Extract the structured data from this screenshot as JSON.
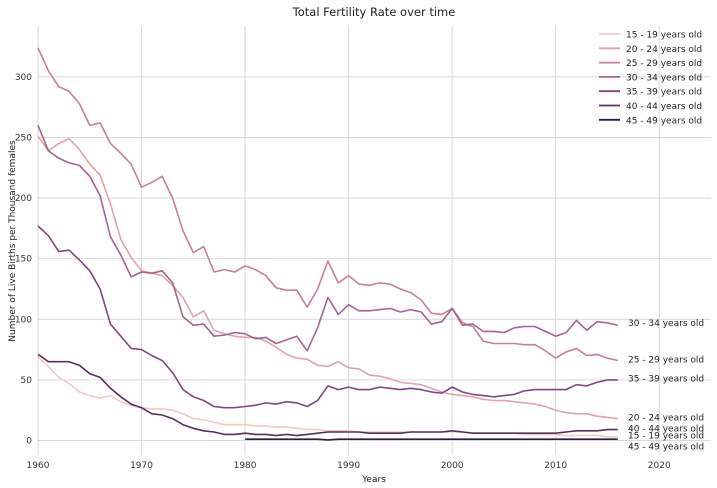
{
  "chart_data": {
    "type": "line",
    "title": "Total Fertility Rate over time",
    "xlabel": "Years",
    "ylabel": "Number of Live Births per Thousand females",
    "xlim": [
      1960,
      2025
    ],
    "ylim": [
      -12,
      342
    ],
    "xticks": [
      1960,
      1970,
      1980,
      1990,
      2000,
      2010,
      2020
    ],
    "yticks": [
      0,
      50,
      100,
      150,
      200,
      250,
      300
    ],
    "grid": true,
    "legend_position": "top-right",
    "series": [
      {
        "name": "15 - 19 years old",
        "color": "#efcbc4",
        "end_label": "15 - 19 years old",
        "x": [
          1960,
          1961,
          1962,
          1963,
          1964,
          1965,
          1966,
          1967,
          1968,
          1969,
          1970,
          1971,
          1972,
          1973,
          1974,
          1975,
          1976,
          1977,
          1978,
          1979,
          1980,
          1981,
          1982,
          1983,
          1984,
          1985,
          1986,
          1987,
          1988,
          1989,
          1990,
          1991,
          1992,
          1993,
          1994,
          1995,
          1996,
          1997,
          1998,
          1999,
          2000,
          2001,
          2002,
          2003,
          2004,
          2005,
          2006,
          2007,
          2008,
          2009,
          2010,
          2011,
          2012,
          2013,
          2014,
          2015,
          2016
        ],
        "y": [
          69,
          61,
          52,
          47,
          40,
          37,
          35,
          37,
          32,
          29,
          27,
          26,
          26,
          25,
          22,
          18,
          17,
          15,
          13,
          13,
          13,
          12,
          12,
          11,
          11,
          10,
          9,
          9,
          8,
          8,
          8,
          7,
          7,
          7,
          7,
          7,
          7,
          7,
          7,
          7,
          7,
          7,
          6,
          6,
          6,
          6,
          6,
          5,
          5,
          5,
          5,
          4,
          4,
          4,
          4,
          3,
          3
        ]
      },
      {
        "name": "20 - 24 years old",
        "color": "#e0a3a9",
        "end_label": "20 - 24 years old",
        "x": [
          1960,
          1961,
          1962,
          1963,
          1964,
          1965,
          1966,
          1967,
          1968,
          1969,
          1970,
          1971,
          1972,
          1973,
          1974,
          1975,
          1976,
          1977,
          1978,
          1979,
          1980,
          1981,
          1982,
          1983,
          1984,
          1985,
          1986,
          1987,
          1988,
          1989,
          1990,
          1991,
          1992,
          1993,
          1994,
          1995,
          1996,
          1997,
          1998,
          1999,
          2000,
          2001,
          2002,
          2003,
          2004,
          2005,
          2006,
          2007,
          2008,
          2009,
          2010,
          2011,
          2012,
          2013,
          2014,
          2015,
          2016
        ],
        "y": [
          251,
          239,
          245,
          249,
          240,
          228,
          219,
          195,
          166,
          151,
          140,
          138,
          136,
          128,
          118,
          102,
          107,
          91,
          88,
          86,
          85,
          85,
          82,
          77,
          71,
          68,
          67,
          62,
          61,
          65,
          60,
          59,
          54,
          53,
          51,
          48,
          47,
          46,
          43,
          40,
          38,
          37,
          36,
          34,
          33,
          33,
          32,
          31,
          30,
          28,
          25,
          23,
          22,
          22,
          20,
          19,
          18
        ]
      },
      {
        "name": "25 - 29 years old",
        "color": "#c77f9b",
        "end_label": "25 - 29 years old",
        "x": [
          1960,
          1961,
          1962,
          1963,
          1964,
          1965,
          1966,
          1967,
          1968,
          1969,
          1970,
          1971,
          1972,
          1973,
          1974,
          1975,
          1976,
          1977,
          1978,
          1979,
          1980,
          1981,
          1982,
          1983,
          1984,
          1985,
          1986,
          1987,
          1988,
          1989,
          1990,
          1991,
          1992,
          1993,
          1994,
          1995,
          1996,
          1997,
          1998,
          1999,
          2000,
          2001,
          2002,
          2003,
          2004,
          2005,
          2006,
          2007,
          2008,
          2009,
          2010,
          2011,
          2012,
          2013,
          2014,
          2015,
          2016
        ],
        "y": [
          324,
          305,
          292,
          288,
          278,
          260,
          262,
          245,
          237,
          228,
          209,
          213,
          218,
          200,
          173,
          155,
          160,
          139,
          141,
          139,
          144,
          141,
          136,
          126,
          124,
          124,
          110,
          125,
          148,
          130,
          136,
          129,
          128,
          130,
          129,
          125,
          122,
          116,
          105,
          104,
          109,
          97,
          94,
          82,
          80,
          80,
          80,
          79,
          79,
          74,
          68,
          73,
          76,
          70,
          71,
          68,
          66
        ]
      },
      {
        "name": "30 - 34 years old",
        "color": "#a5648f",
        "end_label": "30 - 34 years old",
        "x": [
          1960,
          1961,
          1962,
          1963,
          1964,
          1965,
          1966,
          1967,
          1968,
          1969,
          1970,
          1971,
          1972,
          1973,
          1974,
          1975,
          1976,
          1977,
          1978,
          1979,
          1980,
          1981,
          1982,
          1983,
          1984,
          1985,
          1986,
          1987,
          1988,
          1989,
          1990,
          1991,
          1992,
          1993,
          1994,
          1995,
          1996,
          1997,
          1998,
          1999,
          2000,
          2001,
          2002,
          2003,
          2004,
          2005,
          2006,
          2007,
          2008,
          2009,
          2010,
          2011,
          2012,
          2013,
          2014,
          2015,
          2016
        ],
        "y": [
          260,
          239,
          233,
          229,
          227,
          218,
          202,
          168,
          153,
          135,
          139,
          138,
          140,
          130,
          102,
          95,
          96,
          86,
          87,
          89,
          88,
          84,
          85,
          80,
          83,
          86,
          74,
          93,
          118,
          104,
          112,
          107,
          107,
          108,
          109,
          106,
          108,
          106,
          96,
          98,
          109,
          95,
          96,
          90,
          90,
          89,
          93,
          94,
          94,
          90,
          86,
          89,
          99,
          91,
          98,
          97,
          95
        ]
      },
      {
        "name": "35 - 39 years old",
        "color": "#7e4a7c",
        "end_label": "35 - 39 years old",
        "x": [
          1960,
          1961,
          1962,
          1963,
          1964,
          1965,
          1966,
          1967,
          1968,
          1969,
          1970,
          1971,
          1972,
          1973,
          1974,
          1975,
          1976,
          1977,
          1978,
          1979,
          1980,
          1981,
          1982,
          1983,
          1984,
          1985,
          1986,
          1987,
          1988,
          1989,
          1990,
          1991,
          1992,
          1993,
          1994,
          1995,
          1996,
          1997,
          1998,
          1999,
          2000,
          2001,
          2002,
          2003,
          2004,
          2005,
          2006,
          2007,
          2008,
          2009,
          2010,
          2011,
          2012,
          2013,
          2014,
          2015,
          2016
        ],
        "y": [
          177,
          169,
          156,
          157,
          149,
          140,
          125,
          96,
          86,
          76,
          75,
          70,
          66,
          56,
          42,
          36,
          33,
          28,
          27,
          27,
          28,
          29,
          31,
          30,
          32,
          31,
          28,
          33,
          45,
          42,
          44,
          42,
          42,
          44,
          43,
          42,
          43,
          42,
          40,
          39,
          44,
          40,
          38,
          37,
          36,
          37,
          38,
          41,
          42,
          42,
          42,
          42,
          46,
          45,
          48,
          50,
          50
        ]
      },
      {
        "name": "40 - 44 years old",
        "color": "#56305c",
        "end_label": "40 - 44 years old",
        "x": [
          1960,
          1961,
          1962,
          1963,
          1964,
          1965,
          1966,
          1967,
          1968,
          1969,
          1970,
          1971,
          1972,
          1973,
          1974,
          1975,
          1976,
          1977,
          1978,
          1979,
          1980,
          1981,
          1982,
          1983,
          1984,
          1985,
          1986,
          1987,
          1988,
          1989,
          1990,
          1991,
          1992,
          1993,
          1994,
          1995,
          1996,
          1997,
          1998,
          1999,
          2000,
          2001,
          2002,
          2003,
          2004,
          2005,
          2006,
          2007,
          2008,
          2009,
          2010,
          2011,
          2012,
          2013,
          2014,
          2015,
          2016
        ],
        "y": [
          71,
          65,
          65,
          65,
          62,
          55,
          52,
          43,
          36,
          30,
          27,
          22,
          21,
          18,
          13,
          10,
          8,
          7,
          5,
          5,
          6,
          5,
          5,
          4,
          5,
          4,
          5,
          6,
          7,
          7,
          7,
          7,
          6,
          6,
          6,
          6,
          7,
          7,
          7,
          7,
          8,
          7,
          6,
          6,
          6,
          6,
          6,
          6,
          6,
          6,
          6,
          7,
          8,
          8,
          8,
          9,
          9
        ]
      },
      {
        "name": "45 - 49 years old",
        "color": "#2d1e3e",
        "end_label": "45 - 49 years old",
        "x": [
          1980,
          1981,
          1982,
          1983,
          1984,
          1985,
          1986,
          1987,
          1988,
          1989,
          1990,
          1991,
          1992,
          1993,
          1994,
          1995,
          1996,
          1997,
          1998,
          1999,
          2000,
          2001,
          2002,
          2003,
          2004,
          2005,
          2006,
          2007,
          2008,
          2009,
          2010,
          2011,
          2012,
          2013,
          2014,
          2015,
          2016
        ],
        "y": [
          1,
          1,
          1,
          1,
          1,
          1,
          1,
          1,
          0.5,
          1,
          1,
          1,
          1,
          1,
          1,
          1,
          1,
          1,
          1,
          1,
          1,
          1,
          1,
          1,
          1,
          1,
          1,
          1,
          1,
          1,
          1,
          1,
          1,
          1,
          1,
          1,
          1
        ]
      }
    ],
    "end_labels": [
      {
        "text": "30 - 34 years old",
        "y": 97
      },
      {
        "text": "25 - 29 years old",
        "y": 67
      },
      {
        "text": "35 - 39 years old",
        "y": 51
      },
      {
        "text": "20 - 24 years old",
        "y": 19
      },
      {
        "text": "40 - 44 years old",
        "y": 10
      },
      {
        "text": "15 - 19 years old",
        "y": 4
      },
      {
        "text": "45 - 49 years old",
        "y": -5
      }
    ]
  }
}
